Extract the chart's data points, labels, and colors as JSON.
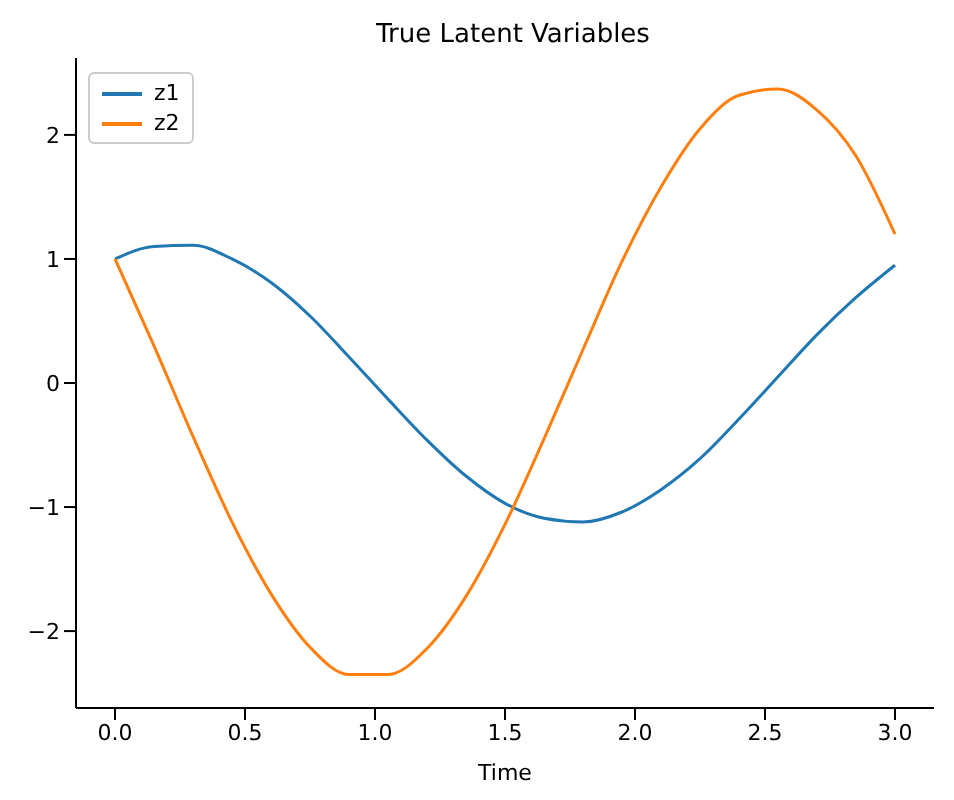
{
  "chart_data": {
    "type": "line",
    "title": "True Latent Variables",
    "xlabel": "Time",
    "x": [
      0,
      0.15,
      0.3,
      0.45,
      0.6,
      0.75,
      0.9,
      1.05,
      1.2,
      1.35,
      1.5,
      1.65,
      1.8,
      1.95,
      2.1,
      2.25,
      2.4,
      2.55,
      2.7,
      2.85,
      3.0
    ],
    "series": [
      {
        "name": "z1",
        "color": "#1f77b4",
        "values": [
          1.0,
          1.1,
          1.11,
          1.0,
          0.81,
          0.54,
          0.21,
          -0.13,
          -0.46,
          -0.75,
          -0.97,
          -1.09,
          -1.12,
          -1.04,
          -0.86,
          -0.61,
          -0.29,
          0.05,
          0.39,
          0.69,
          0.95
        ]
      },
      {
        "name": "z2",
        "color": "#ff7f0e",
        "values": [
          1.0,
          0.3,
          -0.43,
          -1.12,
          -1.7,
          -2.13,
          -2.35,
          -2.35,
          -2.14,
          -1.72,
          -1.14,
          -0.45,
          0.27,
          0.98,
          1.58,
          2.05,
          2.32,
          2.37,
          2.2,
          1.83,
          1.2
        ]
      }
    ],
    "xlim": [
      -0.15,
      3.15
    ],
    "xticks": [
      {
        "value": 0,
        "label": "0.0"
      },
      {
        "value": 0.5,
        "label": "0.5"
      },
      {
        "value": 1,
        "label": "1.0"
      },
      {
        "value": 1.5,
        "label": "1.5"
      },
      {
        "value": 2,
        "label": "2.0"
      },
      {
        "value": 2.5,
        "label": "2.5"
      },
      {
        "value": 3,
        "label": "3.0"
      }
    ],
    "ylim": [
      -2.62,
      2.62
    ],
    "yticks": [
      {
        "value": -2,
        "label": "−2"
      },
      {
        "value": -1,
        "label": "−1"
      },
      0,
      1,
      2
    ],
    "legend": "top left",
    "grid": false,
    "marker": "none",
    "line_style": "solid"
  }
}
